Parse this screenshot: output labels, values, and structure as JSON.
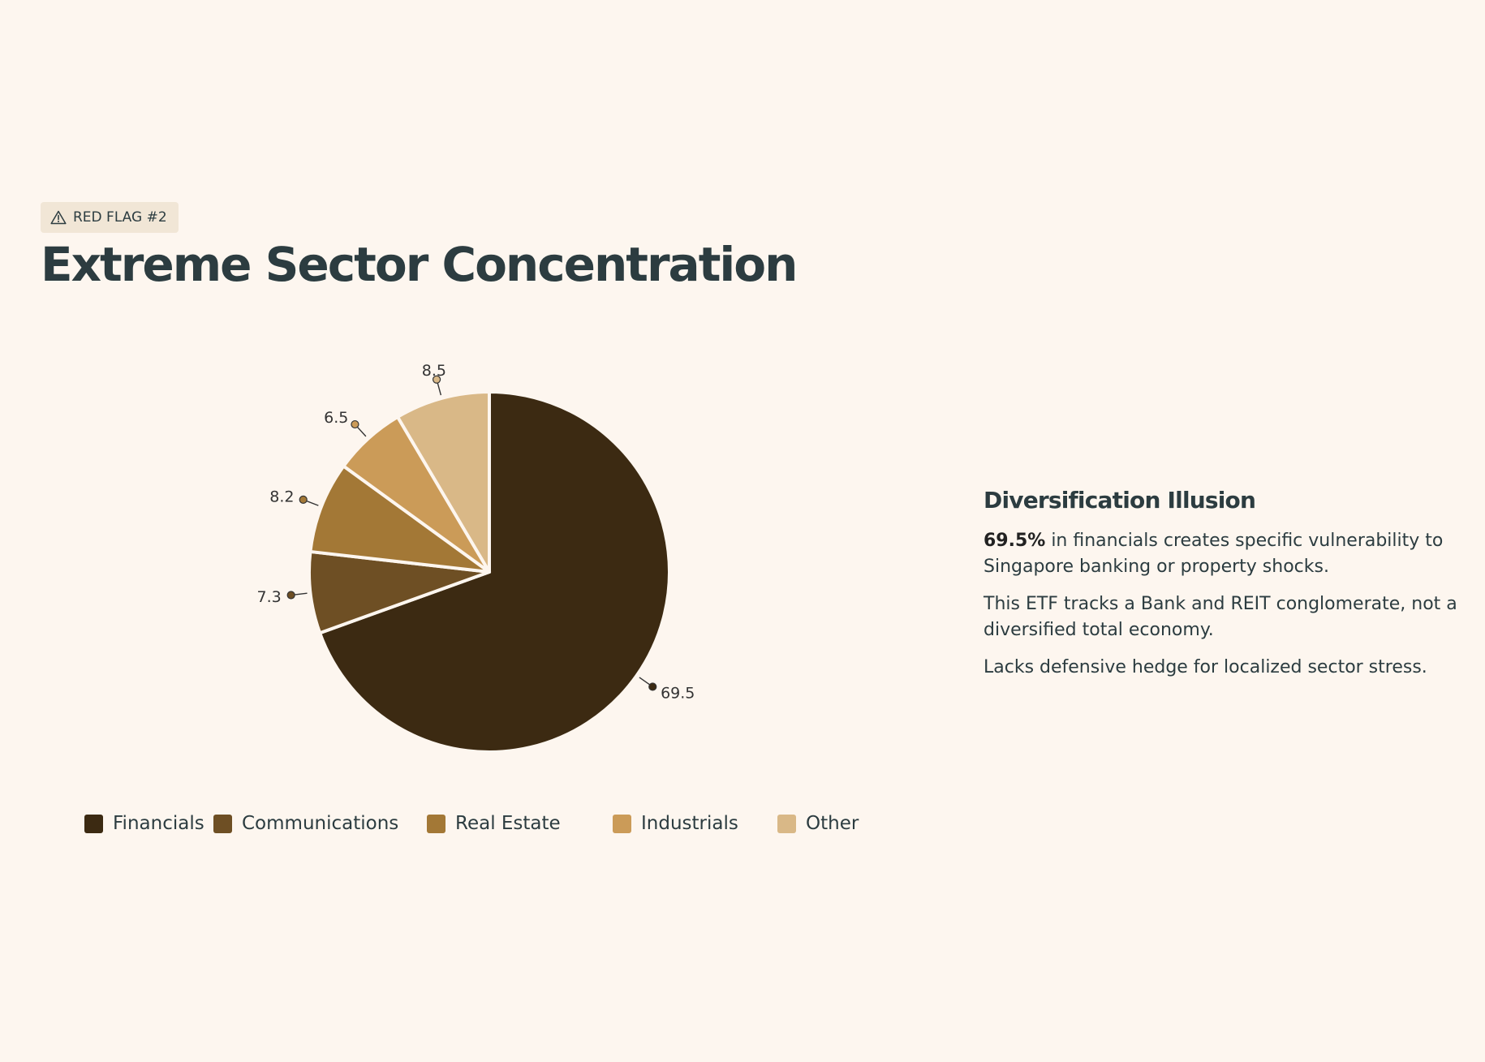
{
  "badge": {
    "icon": "warning-triangle-icon",
    "label": "RED FLAG #2"
  },
  "title": "Extreme Sector Concentration",
  "chart_data": {
    "type": "pie",
    "categories": [
      "Financials",
      "Communications",
      "Real Estate",
      "Industrials",
      "Other"
    ],
    "values": [
      69.5,
      7.3,
      8.2,
      6.5,
      8.5
    ],
    "data_labels": [
      "69.5",
      "7.3",
      "8.2",
      "6.5",
      "8.5"
    ],
    "colors": [
      "#3c2a12",
      "#6e4f24",
      "#a37836",
      "#cb9b58",
      "#d9b887"
    ],
    "title": "",
    "legend_position": "bottom",
    "start_angle": "12-o'clock",
    "direction": "clockwise"
  },
  "legend": [
    {
      "label": "Financials",
      "color": "#3c2a12"
    },
    {
      "label": "Communications",
      "color": "#6e4f24"
    },
    {
      "label": "Real Estate",
      "color": "#a37836"
    },
    {
      "label": "Industrials",
      "color": "#cb9b58"
    },
    {
      "label": "Other",
      "color": "#d9b887"
    }
  ],
  "panel": {
    "heading": "Diversification Illusion",
    "p1_strong": "69.5%",
    "p1_rest": " in financials creates specific vulnerability to Singapore banking or property shocks.",
    "p2": "This ETF tracks a Bank and REIT conglomerate, not a diversified total economy.",
    "p3": "Lacks defensive hedge for localized sector stress."
  }
}
